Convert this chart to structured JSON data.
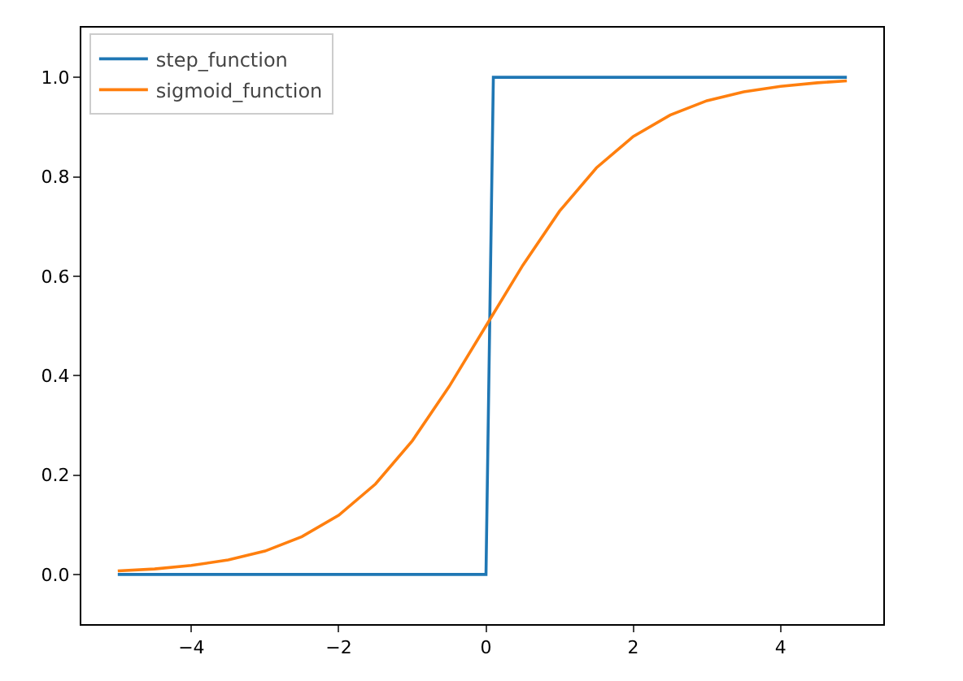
{
  "chart_data": {
    "type": "line",
    "xlim": [
      -5.495,
      5.395
    ],
    "ylim": [
      -0.1,
      1.1
    ],
    "xticks": [
      {
        "value": -4,
        "label": "−4"
      },
      {
        "value": -2,
        "label": "−2"
      },
      0,
      2,
      4
    ],
    "yticks": [
      {
        "value": 0,
        "label": "0.0"
      },
      {
        "value": 0.2,
        "label": "0.2"
      },
      {
        "value": 0.4,
        "label": "0.4"
      },
      {
        "value": 0.6,
        "label": "0.6"
      },
      {
        "value": 0.8,
        "label": "0.8"
      },
      {
        "value": 1,
        "label": "1.0"
      }
    ],
    "grid": false,
    "legend": "top left",
    "marker": "none",
    "line_style": "solid",
    "series": [
      {
        "name": "step_function",
        "color": "#1f77b4",
        "x": [
          -5,
          0,
          0.1,
          4.9
        ],
        "values": [
          0,
          0,
          1,
          1
        ]
      },
      {
        "name": "sigmoid_function",
        "color": "#ff7f0e",
        "x": [
          -5,
          -4.5,
          -4,
          -3.5,
          -3,
          -2.5,
          -2,
          -1.5,
          -1,
          -0.5,
          0,
          0.5,
          1,
          1.5,
          2,
          2.5,
          3,
          3.5,
          4,
          4.5,
          4.9
        ],
        "values": [
          0.007,
          0.011,
          0.018,
          0.029,
          0.047,
          0.076,
          0.119,
          0.182,
          0.269,
          0.378,
          0.5,
          0.622,
          0.731,
          0.818,
          0.881,
          0.924,
          0.953,
          0.971,
          0.982,
          0.989,
          0.993
        ]
      }
    ]
  }
}
